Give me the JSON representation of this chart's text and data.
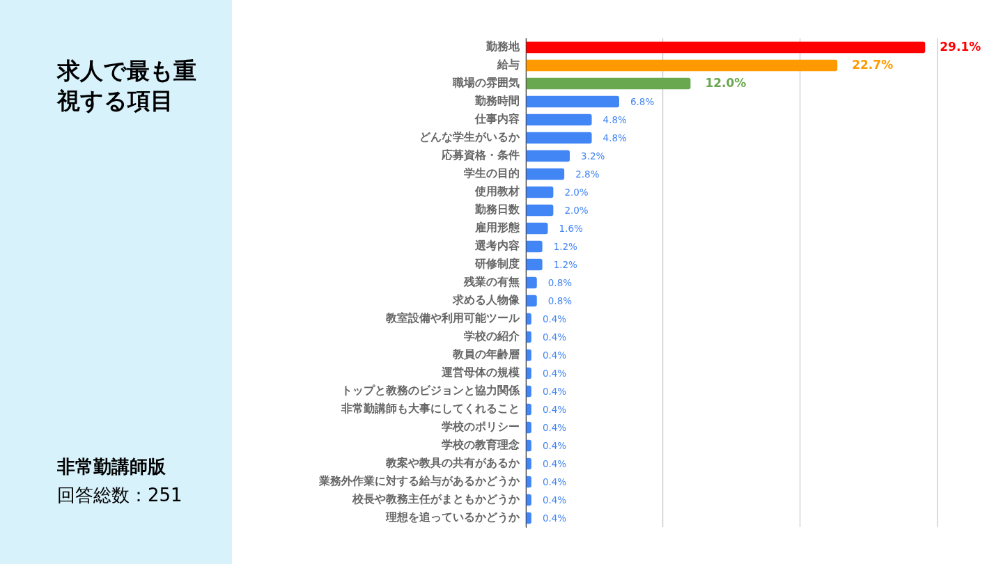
{
  "chart_data": {
    "type": "bar",
    "orientation": "horizontal",
    "title": "求人で最も重視する項目",
    "subtitle": "非常勤講師版",
    "annotations": [
      "回答総数：251"
    ],
    "categories": [
      "勤務地",
      "給与",
      "職場の雰囲気",
      "勤務時間",
      "仕事内容",
      "どんな学生がいるか",
      "応募資格・条件",
      "学生の目的",
      "使用教材",
      "勤務日数",
      "雇用形態",
      "選考内容",
      "研修制度",
      "残業の有無",
      "求める人物像",
      "教室設備や利用可能ツール",
      "学校の紹介",
      "教員の年齢層",
      "運営母体の規模",
      "トップと教務のビジョンと協力関係",
      "非常勤講師も大事にしてくれること",
      "学校のポリシー",
      "学校の教育理念",
      "教案や教具の共有があるか",
      "業務外作業に対する給与があるかどうか",
      "校長や教務主任がまともかどうか",
      "理想を追っているかどうか"
    ],
    "values": [
      29.1,
      22.7,
      12.0,
      6.8,
      4.8,
      4.8,
      3.2,
      2.8,
      2.0,
      2.0,
      1.6,
      1.2,
      1.2,
      0.8,
      0.8,
      0.4,
      0.4,
      0.4,
      0.4,
      0.4,
      0.4,
      0.4,
      0.4,
      0.4,
      0.4,
      0.4,
      0.4
    ],
    "value_labels": [
      "29.1%",
      "22.7%",
      "12.0%",
      "6.8%",
      "4.8%",
      "4.8%",
      "3.2%",
      "2.8%",
      "2.0%",
      "2.0%",
      "1.6%",
      "1.2%",
      "1.2%",
      "0.8%",
      "0.8%",
      "0.4%",
      "0.4%",
      "0.4%",
      "0.4%",
      "0.4%",
      "0.4%",
      "0.4%",
      "0.4%",
      "0.4%",
      "0.4%",
      "0.4%",
      "0.4%"
    ],
    "colors": [
      "#ff0000",
      "#ff9900",
      "#6aa84f",
      "#4285f4",
      "#4285f4",
      "#4285f4",
      "#4285f4",
      "#4285f4",
      "#4285f4",
      "#4285f4",
      "#4285f4",
      "#4285f4",
      "#4285f4",
      "#4285f4",
      "#4285f4",
      "#4285f4",
      "#4285f4",
      "#4285f4",
      "#4285f4",
      "#4285f4",
      "#4285f4",
      "#4285f4",
      "#4285f4",
      "#4285f4",
      "#4285f4",
      "#4285f4",
      "#4285f4"
    ],
    "xlim": [
      0,
      30
    ],
    "xticks": [
      {
        "value": 0,
        "label": null
      },
      {
        "value": 10,
        "label": null
      },
      {
        "value": 20,
        "label": null
      },
      {
        "value": 30,
        "label": null
      }
    ],
    "grid": "x",
    "tick_labels": "y"
  }
}
